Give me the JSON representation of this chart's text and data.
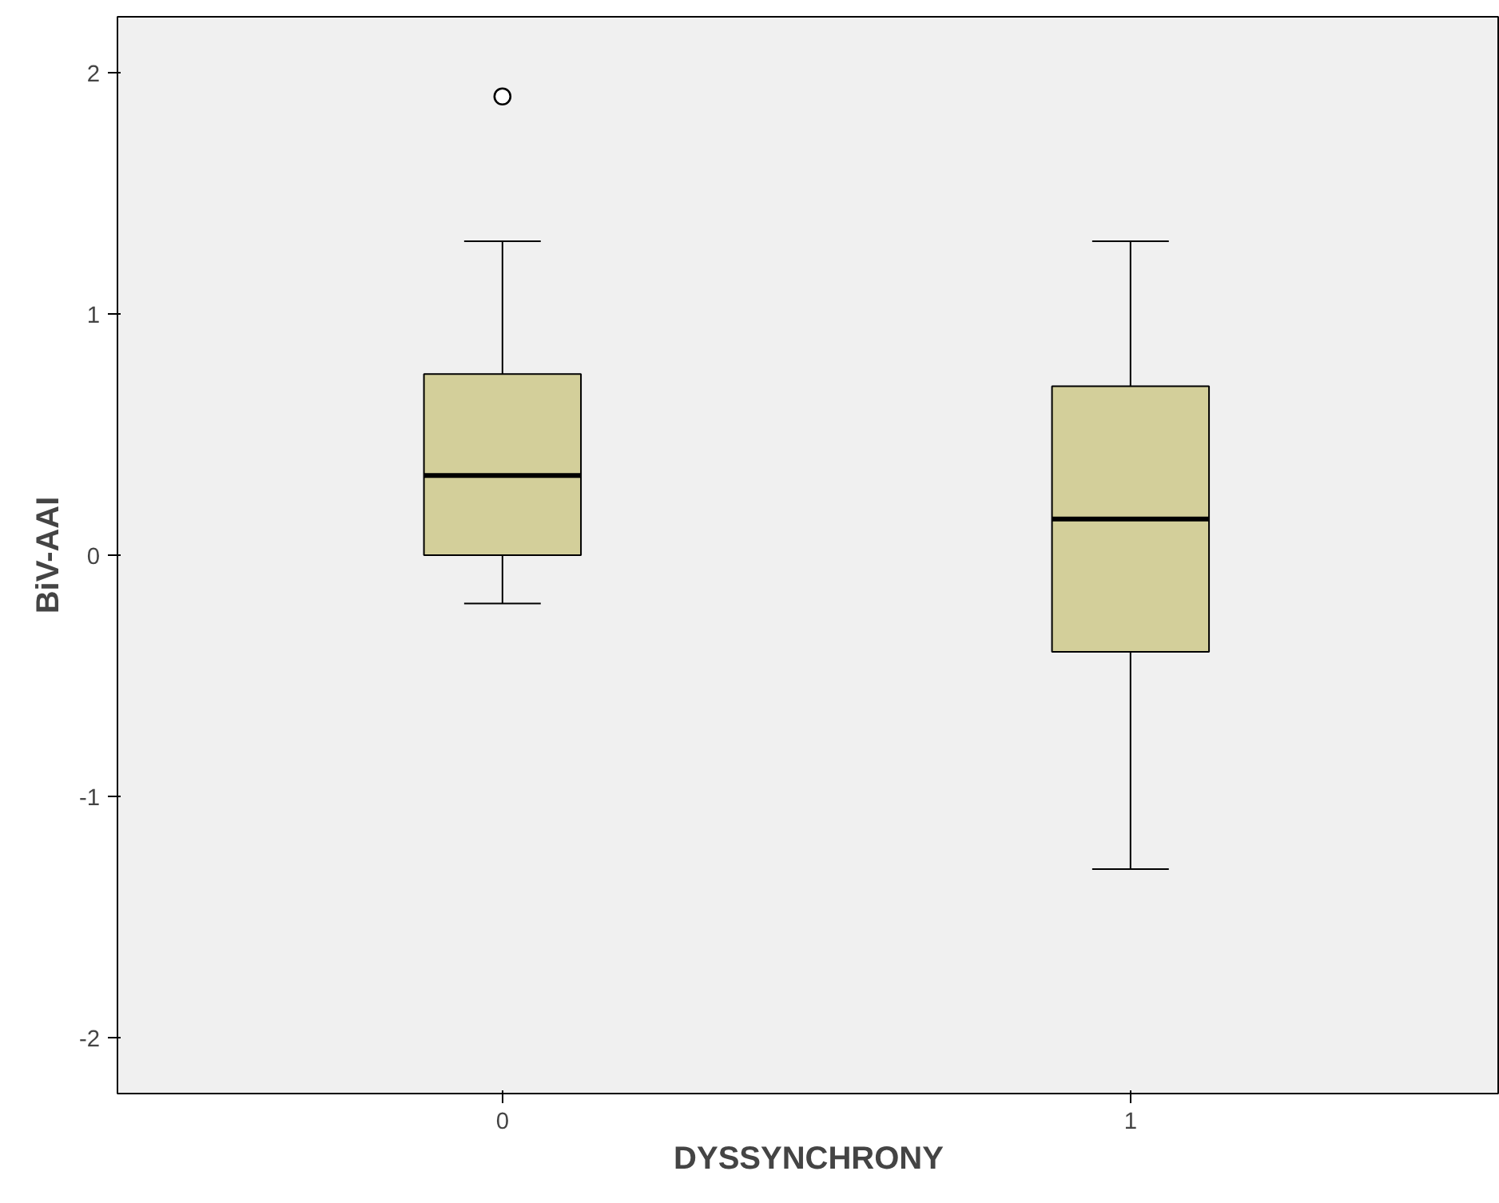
{
  "chart_data": {
    "type": "box",
    "xlabel": "DYSSYNCHRONY",
    "ylabel": "BiV-AAI",
    "categories": [
      "0",
      "1"
    ],
    "boxes": [
      {
        "low": -0.2,
        "q1": 0,
        "median": 0.33,
        "q3": 0.75,
        "high": 1.3,
        "outliers": [
          1.9
        ]
      },
      {
        "low": -1.3,
        "q1": -0.4,
        "median": 0.15,
        "q3": 0.7,
        "high": 1.3
      }
    ],
    "color": "#d3cf9a",
    "ylim": [
      -2.23,
      2.23
    ],
    "yticks": [
      -2,
      -1,
      0,
      1,
      2
    ],
    "grid": false
  }
}
